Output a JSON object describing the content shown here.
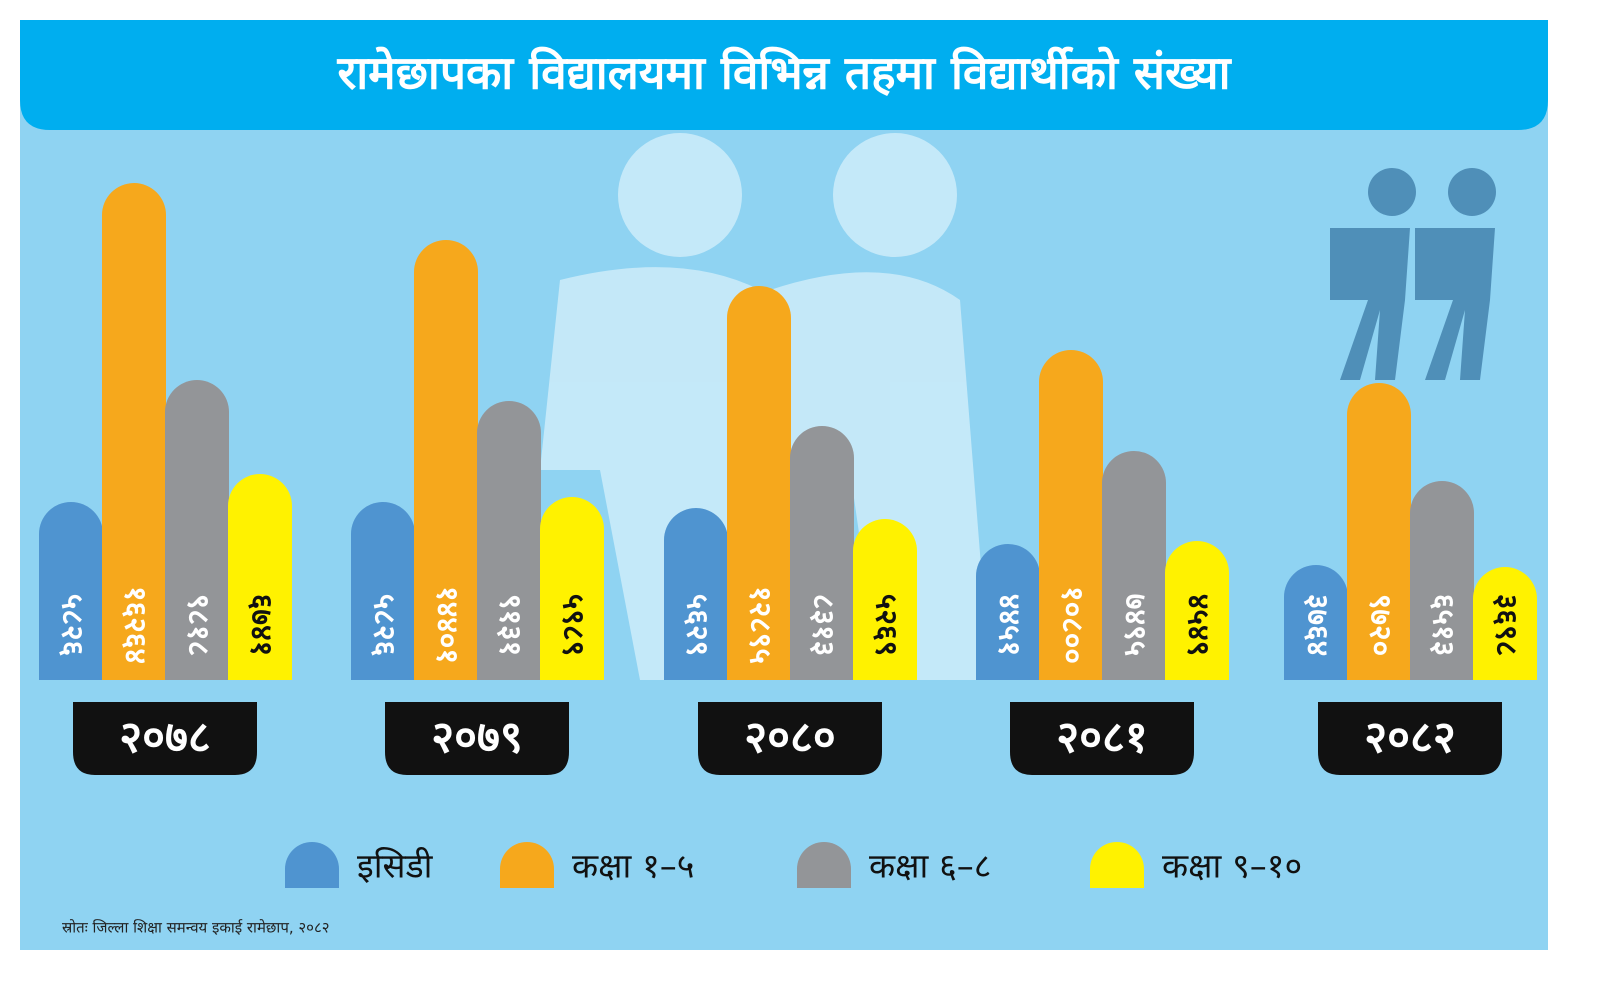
{
  "chart_data": {
    "type": "bar",
    "title": "रामेछापका विद्यालयमा विभिन्न तहमा विद्यार्थीको संख्या",
    "source": "स्रोतः जिल्ला शिक्षा समन्वय इकाई रामेछाप, २०८२",
    "categories": [
      "२०७८",
      "२०७९",
      "२०८०",
      "२०८१",
      "२०८२"
    ],
    "ylim": [
      0,
      18000
    ],
    "series": [
      {
        "name": "इसिडी",
        "color": "#4f94d0",
        "label_color": "#ffffff",
        "values": [
          5826,
          5826,
          5629,
          4451,
          3764
        ],
        "value_labels": [
          "५८२६",
          "५८२६",
          "५६२९",
          "४४५१",
          "३७६४"
        ]
      },
      {
        "name": "कक्षा १–५",
        "color": "#f6a81c",
        "label_color": "#ffffff",
        "values": [
          16264,
          14401,
          12895,
          10800,
          9720
        ],
        "value_labels": [
          "१६२६४",
          "१४४०१",
          "१२८९५",
          "१०८००",
          "९७२०"
        ]
      },
      {
        "name": "कक्षा ६–८",
        "color": "#939598",
        "label_color": "#ffffff",
        "values": [
          9818,
          9131,
          8313,
          7495,
          6513
        ],
        "value_labels": [
          "९८१८",
          "९१३१",
          "८३१३",
          "७४९५",
          "६५१३"
        ]
      },
      {
        "name": "कक्षा ९–१०",
        "color": "#fff200",
        "label_color": "#111111",
        "values": [
          6741,
          5989,
          5269,
          4549,
          3698
        ],
        "value_labels": [
          "६७४१",
          "५९८९",
          "५२६९",
          "४५४९",
          "३६९८"
        ]
      }
    ]
  }
}
